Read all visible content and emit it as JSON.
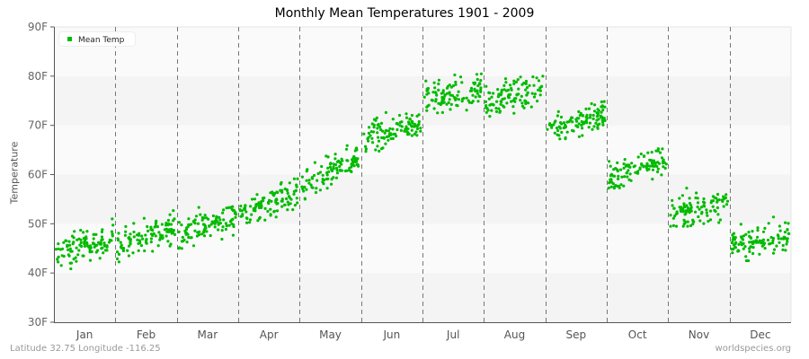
{
  "chart_data": {
    "type": "scatter",
    "title": "Monthly Mean Temperatures 1901 - 2009",
    "xlabel": "",
    "ylabel": "Temperature",
    "ylim": [
      30,
      90
    ],
    "y_ticks": [
      "30F",
      "40F",
      "50F",
      "60F",
      "70F",
      "80F",
      "90F"
    ],
    "categories": [
      "Jan",
      "Feb",
      "Mar",
      "Apr",
      "May",
      "Jun",
      "Jul",
      "Aug",
      "Sep",
      "Oct",
      "Nov",
      "Dec"
    ],
    "legend": [
      {
        "name": "Mean Temp",
        "color": "#00bb00"
      }
    ],
    "legend_position": "top-left",
    "grid": "alternating horizontal bands, dashed vertical month separators",
    "series": [
      {
        "name": "Mean Temp",
        "per_month_range": [
          {
            "month": "Jan",
            "start": 43.5,
            "end": 47.5,
            "min": 38,
            "max": 51
          },
          {
            "month": "Feb",
            "start": 45.5,
            "end": 49.5,
            "min": 41.5,
            "max": 53
          },
          {
            "month": "Mar",
            "start": 47.5,
            "end": 52,
            "min": 45,
            "max": 57.5
          },
          {
            "month": "Apr",
            "start": 52,
            "end": 56.5,
            "min": 50,
            "max": 62
          },
          {
            "month": "May",
            "start": 57,
            "end": 63.5,
            "min": 55,
            "max": 66.5
          },
          {
            "month": "Jun",
            "start": 67,
            "end": 71,
            "min": 64,
            "max": 74.5
          },
          {
            "month": "Jul",
            "start": 75,
            "end": 77.5,
            "min": 72,
            "max": 83
          },
          {
            "month": "Aug",
            "start": 75,
            "end": 77.5,
            "min": 71,
            "max": 80.5
          },
          {
            "month": "Sep",
            "start": 69,
            "end": 72.5,
            "min": 65.5,
            "max": 76.5
          },
          {
            "month": "Oct",
            "start": 59,
            "end": 63.5,
            "min": 56.5,
            "max": 67
          },
          {
            "month": "Nov",
            "start": 52,
            "end": 54,
            "min": 49.5,
            "max": 57.5
          },
          {
            "month": "Dec",
            "start": 45.5,
            "end": 47.5,
            "min": 42.5,
            "max": 52
          }
        ]
      }
    ],
    "points_per_month": 109
  },
  "footer": {
    "left": "Latitude 32.75 Longitude -116.25",
    "right": "worldspecies.org"
  },
  "colors": {
    "point": "#00bb00",
    "band_dark": "#f4f4f4",
    "band_light": "#fafafa",
    "axis": "#555555",
    "grid": "#777777"
  }
}
